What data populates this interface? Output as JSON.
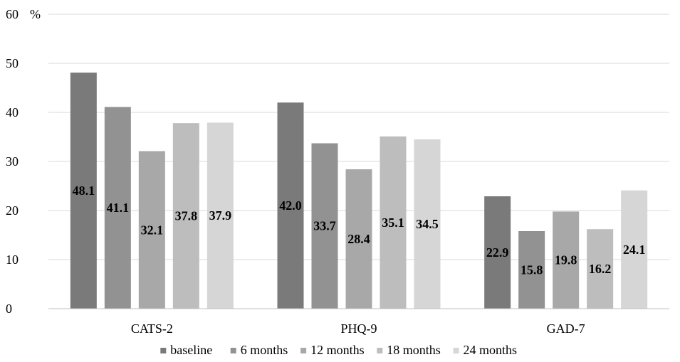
{
  "chart_data": {
    "type": "bar",
    "categories": [
      "CATS-2",
      "PHQ-9",
      "GAD-7"
    ],
    "series": [
      {
        "name": "baseline",
        "values": [
          48.1,
          42.0,
          22.9
        ],
        "color": "#7a7a7a",
        "labels": [
          "48.1",
          "42.0",
          "22.9"
        ]
      },
      {
        "name": "6 months",
        "values": [
          41.1,
          33.7,
          15.8
        ],
        "color": "#929292",
        "labels": [
          "41.1",
          "33.7",
          "15.8"
        ]
      },
      {
        "name": "12 months",
        "values": [
          32.1,
          28.4,
          19.8
        ],
        "color": "#a8a8a8",
        "labels": [
          "32.1",
          "28.4",
          "19.8"
        ]
      },
      {
        "name": "18 months",
        "values": [
          37.8,
          35.1,
          16.2
        ],
        "color": "#bdbdbd",
        "labels": [
          "37.8",
          "35.1",
          "16.2"
        ]
      },
      {
        "name": "24 months",
        "values": [
          37.9,
          34.5,
          24.1
        ],
        "color": "#d6d6d6",
        "labels": [
          "37.9",
          "34.5",
          "24.1"
        ]
      }
    ],
    "yticks": [
      "0",
      "10",
      "20",
      "30",
      "40",
      "50",
      "60"
    ],
    "ylim": [
      0,
      60
    ],
    "yunit": "%",
    "grid": true,
    "legend": "bottom-center",
    "title": "",
    "xlabel": "",
    "ylabel": ""
  }
}
